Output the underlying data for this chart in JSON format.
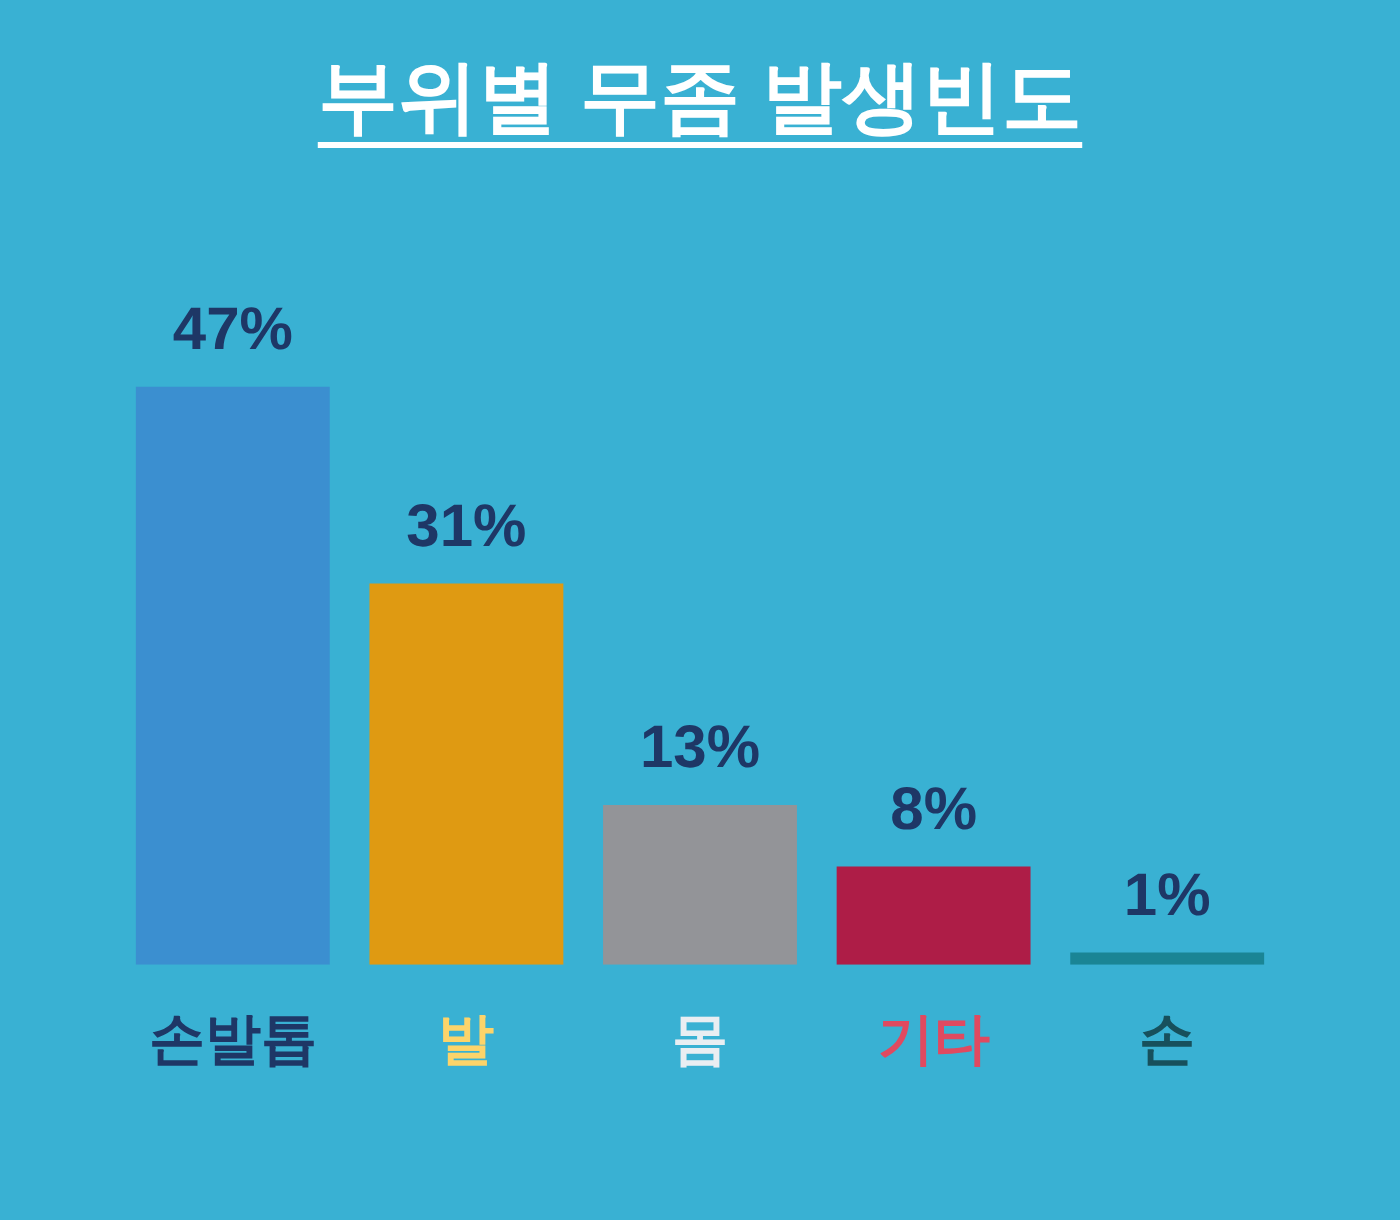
{
  "chart_data": {
    "type": "bar",
    "title": "부위별 무좀 발생빈도",
    "categories": [
      "손발톱",
      "발",
      "몸",
      "기타",
      "손"
    ],
    "values": [
      47,
      31,
      13,
      8,
      1
    ],
    "colors": [
      "#3b8fd0",
      "#df9a12",
      "#939498",
      "#ae1d47",
      "#1a8595"
    ],
    "value_labels": [
      "47%",
      "31%",
      "13%",
      "8%",
      "1%"
    ]
  }
}
